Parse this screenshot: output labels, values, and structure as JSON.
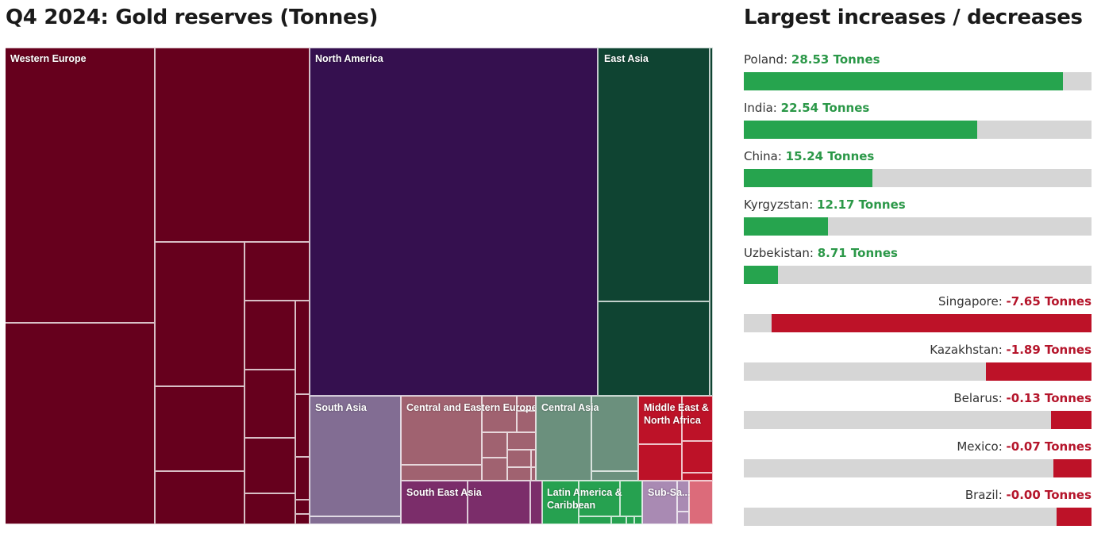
{
  "treemap_title": "Q4 2024: Gold reserves (Tonnes)",
  "bars_title": "Largest increases / decreases",
  "colors": {
    "western_europe": "#66001d",
    "north_america": "#35104f",
    "east_asia": "#0f4432",
    "south_asia": "#826d93",
    "central_eastern_europe": "#a06270",
    "central_asia": "#6b907d",
    "middle_east_north_africa": "#bd1228",
    "south_east_asia": "#7b2d6a",
    "latin_america_caribbean": "#26a150",
    "sub_saharan_africa": "#a98ab3",
    "other": "#dc6b7a",
    "increase": "#26a44e",
    "decrease": "#bd1228",
    "increase_text": "#2b9848",
    "decrease_text": "#b5152b",
    "track": "#d6d6d6"
  },
  "regions": [
    {
      "key": "western_europe",
      "label": "Western Europe"
    },
    {
      "key": "north_america",
      "label": "North America"
    },
    {
      "key": "east_asia",
      "label": "East Asia"
    },
    {
      "key": "south_asia",
      "label": "South Asia"
    },
    {
      "key": "central_eastern_europe",
      "label": "Central and Eastern Europe"
    },
    {
      "key": "central_asia",
      "label": "Central Asia"
    },
    {
      "key": "middle_east_north_africa",
      "label": "Middle East &\nNorth Africa"
    },
    {
      "key": "south_east_asia",
      "label": "South East Asia"
    },
    {
      "key": "latin_america_caribbean",
      "label": "Latin America &\nCaribbean"
    },
    {
      "key": "sub_saharan_africa",
      "label": "Sub-Sa..."
    }
  ],
  "chart_data": [
    {
      "type": "treemap",
      "title": "Q4 2024: Gold reserves (Tonnes)",
      "regions": [
        "Western Europe",
        "North America",
        "East Asia",
        "South Asia",
        "Central and Eastern Europe",
        "Central Asia",
        "Middle East & North Africa",
        "South East Asia",
        "Latin America & Caribbean",
        "Sub-Saharan Africa"
      ]
    },
    {
      "type": "bar",
      "title": "Largest increases / decreases",
      "unit": "Tonnes",
      "series": [
        {
          "name": "Poland",
          "value": 28.53,
          "display": "28.53 Tonnes",
          "fill_fraction": 0.918
        },
        {
          "name": "India",
          "value": 22.54,
          "display": "22.54 Tonnes",
          "fill_fraction": 0.671
        },
        {
          "name": "China",
          "value": 15.24,
          "display": "15.24 Tonnes",
          "fill_fraction": 0.37
        },
        {
          "name": "Kyrgyzstan",
          "value": 12.17,
          "display": "12.17 Tonnes",
          "fill_fraction": 0.242
        },
        {
          "name": "Uzbekistan",
          "value": 8.71,
          "display": "8.71 Tonnes",
          "fill_fraction": 0.098
        },
        {
          "name": "Singapore",
          "value": -7.65,
          "display": "-7.65 Tonnes",
          "fill_fraction": 0.92
        },
        {
          "name": "Kazakhstan",
          "value": -1.89,
          "display": "-1.89 Tonnes",
          "fill_fraction": 0.303
        },
        {
          "name": "Belarus",
          "value": -0.13,
          "display": "-0.13 Tonnes",
          "fill_fraction": 0.117
        },
        {
          "name": "Mexico",
          "value": -0.07,
          "display": "-0.07 Tonnes",
          "fill_fraction": 0.11
        },
        {
          "name": "Brazil",
          "value": -0.0,
          "display": "-0.00 Tonnes",
          "fill_fraction": 0.1
        }
      ]
    }
  ]
}
